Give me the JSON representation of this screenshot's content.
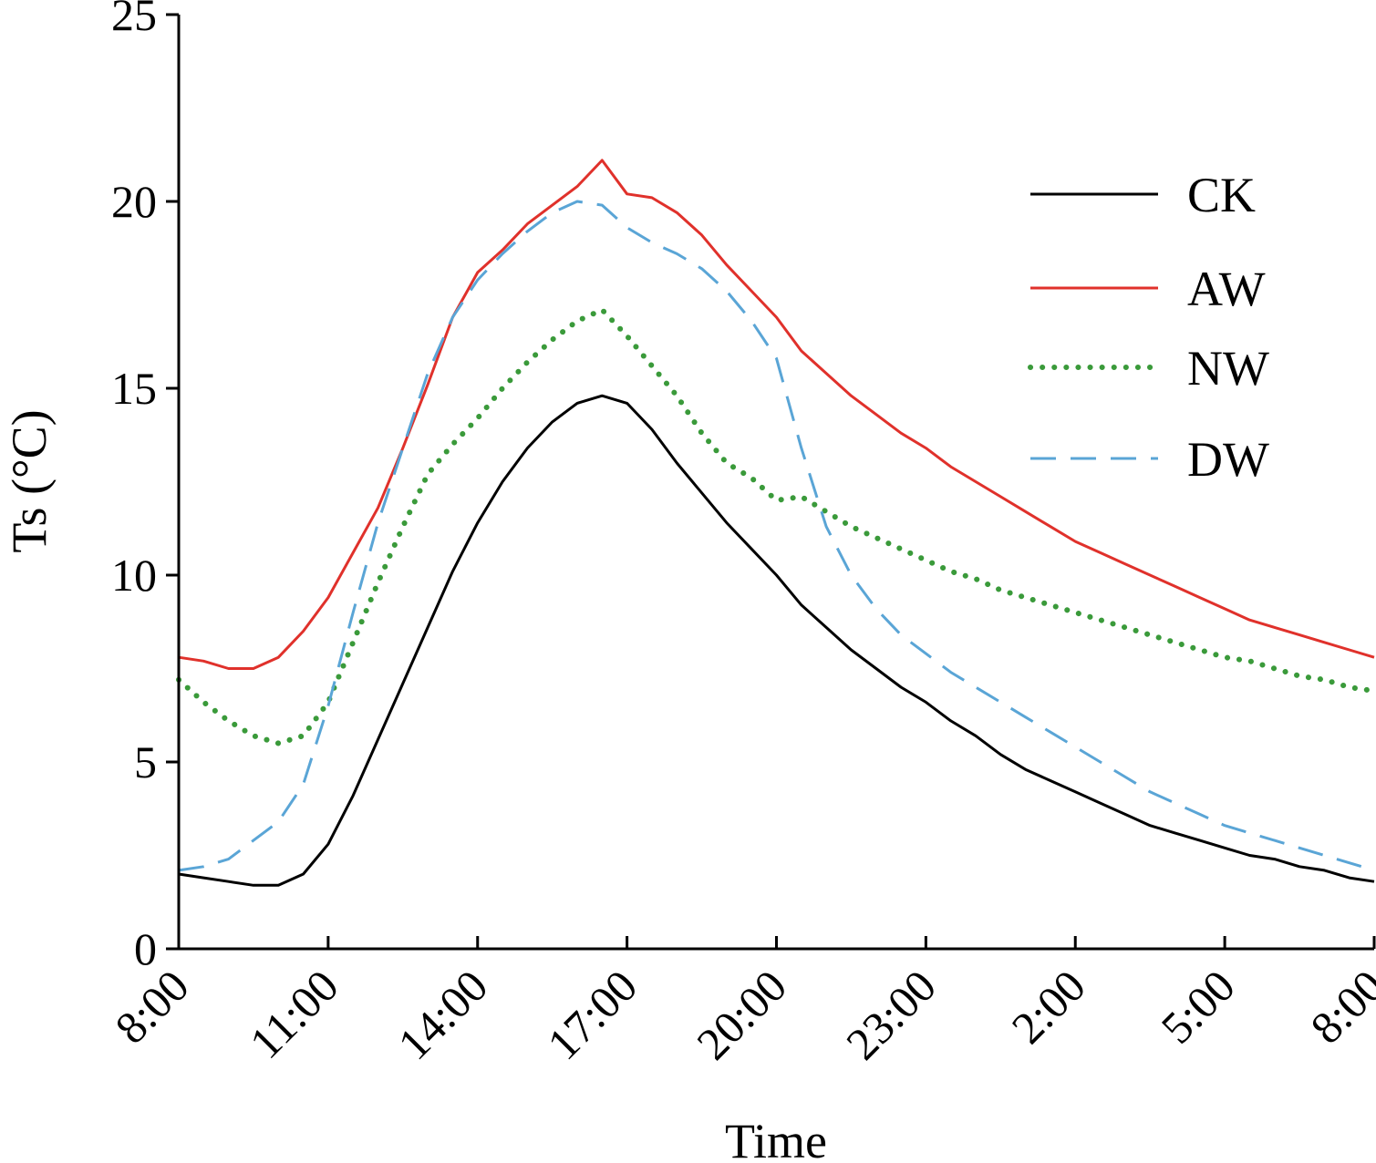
{
  "chart_data": {
    "type": "line",
    "title": "",
    "xlabel": "Time",
    "ylabel": "Ts (°C)",
    "ylim": [
      0,
      25
    ],
    "yticks": [
      0,
      5,
      10,
      15,
      20,
      25
    ],
    "x_tick_labels": [
      "8:00",
      "11:00",
      "14:00",
      "17:00",
      "20:00",
      "23:00",
      "2:00",
      "5:00",
      "8:00"
    ],
    "x_unit": "hours elapsed from 8:00",
    "xlim": [
      0,
      24
    ],
    "legend_position": "top-right",
    "grid": false,
    "series": [
      {
        "name": "CK",
        "color": "#000000",
        "style": "solid",
        "x": [
          0,
          0.5,
          1,
          1.5,
          2,
          2.5,
          3,
          3.5,
          4,
          4.5,
          5,
          5.5,
          6,
          6.5,
          7,
          7.5,
          8,
          8.5,
          9,
          9.5,
          10,
          10.5,
          11,
          11.5,
          12,
          12.5,
          13,
          13.5,
          14,
          14.5,
          15,
          15.5,
          16,
          16.5,
          17,
          17.5,
          18,
          18.5,
          19,
          19.5,
          20,
          20.5,
          21,
          21.5,
          22,
          22.5,
          23,
          23.5,
          24
        ],
        "values": [
          2.0,
          1.9,
          1.8,
          1.7,
          1.7,
          2.0,
          2.8,
          4.1,
          5.6,
          7.1,
          8.6,
          10.1,
          11.4,
          12.5,
          13.4,
          14.1,
          14.6,
          14.8,
          14.6,
          13.9,
          13.0,
          12.2,
          11.4,
          10.7,
          10.0,
          9.2,
          8.6,
          8.0,
          7.5,
          7.0,
          6.6,
          6.1,
          5.7,
          5.2,
          4.8,
          4.5,
          4.2,
          3.9,
          3.6,
          3.3,
          3.1,
          2.9,
          2.7,
          2.5,
          2.4,
          2.2,
          2.1,
          1.9,
          1.8
        ]
      },
      {
        "name": "AW",
        "color": "#e0312b",
        "style": "solid",
        "x": [
          0,
          0.5,
          1,
          1.5,
          2,
          2.5,
          3,
          3.5,
          4,
          4.5,
          5,
          5.5,
          6,
          6.5,
          7,
          7.5,
          8,
          8.5,
          9,
          9.5,
          10,
          10.5,
          11,
          11.5,
          12,
          12.5,
          13,
          13.5,
          14,
          14.5,
          15,
          15.5,
          16,
          16.5,
          17,
          17.5,
          18,
          18.5,
          19,
          19.5,
          20,
          20.5,
          21,
          21.5,
          22,
          22.5,
          23,
          23.5,
          24
        ],
        "values": [
          7.8,
          7.7,
          7.5,
          7.5,
          7.8,
          8.5,
          9.4,
          10.6,
          11.8,
          13.4,
          15.1,
          16.9,
          18.1,
          18.7,
          19.4,
          19.9,
          20.4,
          21.1,
          20.2,
          20.1,
          19.7,
          19.1,
          18.3,
          17.6,
          16.9,
          16.0,
          15.4,
          14.8,
          14.3,
          13.8,
          13.4,
          12.9,
          12.5,
          12.1,
          11.7,
          11.3,
          10.9,
          10.6,
          10.3,
          10.0,
          9.7,
          9.4,
          9.1,
          8.8,
          8.6,
          8.4,
          8.2,
          8.0,
          7.8
        ]
      },
      {
        "name": "NW",
        "color": "#3a9a3a",
        "style": "dotted",
        "x": [
          0,
          0.5,
          1,
          1.5,
          2,
          2.5,
          3,
          3.5,
          4,
          4.5,
          5,
          5.5,
          6,
          6.5,
          7,
          7.5,
          8,
          8.5,
          9,
          9.5,
          10,
          10.5,
          11,
          11.5,
          12,
          12.5,
          13,
          13.5,
          14,
          14.5,
          15,
          15.5,
          16,
          16.5,
          17,
          17.5,
          18,
          18.5,
          19,
          19.5,
          20,
          20.5,
          21,
          21.5,
          22,
          22.5,
          23,
          23.5,
          24
        ],
        "values": [
          7.2,
          6.6,
          6.1,
          5.7,
          5.5,
          5.7,
          6.6,
          8.2,
          9.8,
          11.3,
          12.7,
          13.5,
          14.2,
          15.0,
          15.7,
          16.3,
          16.8,
          17.1,
          16.4,
          15.6,
          14.8,
          13.8,
          13.0,
          12.6,
          12.0,
          12.1,
          11.7,
          11.3,
          11.0,
          10.7,
          10.4,
          10.1,
          9.9,
          9.6,
          9.4,
          9.2,
          9.0,
          8.8,
          8.6,
          8.4,
          8.2,
          8.0,
          7.8,
          7.7,
          7.5,
          7.3,
          7.2,
          7.0,
          6.9
        ]
      },
      {
        "name": "DW",
        "color": "#5aa5d6",
        "style": "dashed",
        "x": [
          0,
          0.5,
          1,
          1.5,
          2,
          2.5,
          3,
          3.5,
          4,
          4.5,
          5,
          5.5,
          6,
          6.5,
          7,
          7.5,
          8,
          8.5,
          9,
          9.5,
          10,
          10.5,
          11,
          11.5,
          12,
          12.5,
          13,
          13.5,
          14,
          14.5,
          15,
          15.5,
          16,
          16.5,
          17,
          17.5,
          18,
          18.5,
          19,
          19.5,
          20,
          20.5,
          21,
          21.5,
          22,
          22.5,
          23,
          23.5,
          24
        ],
        "values": [
          2.1,
          2.2,
          2.4,
          2.9,
          3.4,
          4.4,
          6.5,
          9.0,
          11.4,
          13.4,
          15.4,
          16.9,
          17.9,
          18.6,
          19.2,
          19.7,
          20.0,
          19.9,
          19.3,
          18.9,
          18.6,
          18.2,
          17.6,
          16.8,
          15.8,
          13.4,
          11.3,
          10.0,
          9.1,
          8.4,
          7.9,
          7.4,
          7.0,
          6.6,
          6.2,
          5.8,
          5.4,
          5.0,
          4.6,
          4.2,
          3.9,
          3.6,
          3.3,
          3.1,
          2.9,
          2.7,
          2.5,
          2.3,
          2.1
        ]
      }
    ]
  }
}
